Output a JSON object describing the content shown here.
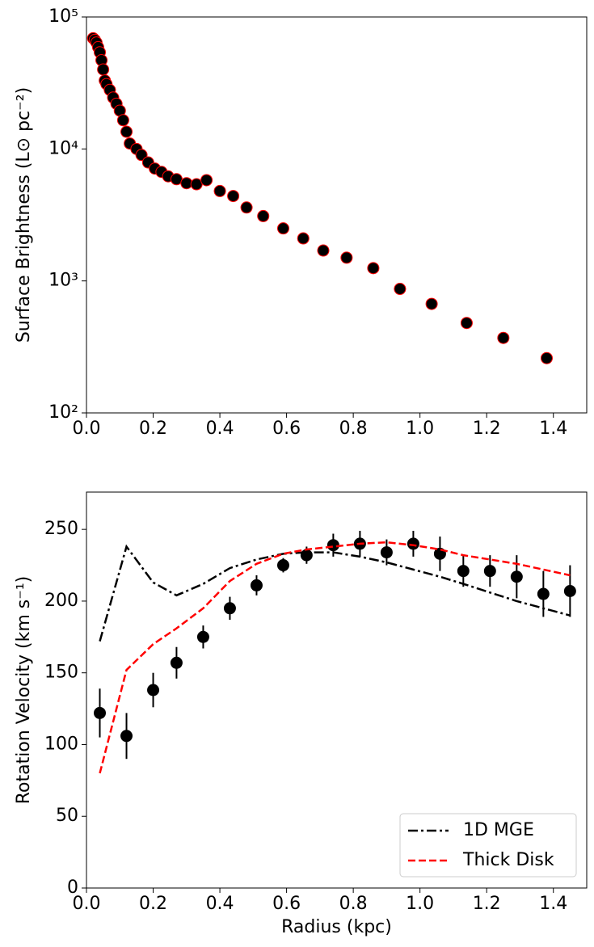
{
  "chart_data": [
    {
      "type": "scatter",
      "ylabel": "Surface Brightness (L⊙ pc⁻²)",
      "x": [
        0.02,
        0.025,
        0.03,
        0.035,
        0.04,
        0.045,
        0.05,
        0.055,
        0.06,
        0.07,
        0.08,
        0.09,
        0.1,
        0.11,
        0.12,
        0.13,
        0.15,
        0.165,
        0.185,
        0.205,
        0.225,
        0.245,
        0.27,
        0.3,
        0.33,
        0.36,
        0.4,
        0.44,
        0.48,
        0.53,
        0.59,
        0.65,
        0.71,
        0.78,
        0.86,
        0.94,
        1.035,
        1.14,
        1.25,
        1.38
      ],
      "series": [
        {
          "color": "#000000",
          "edgecolor": "#ff0000",
          "values": [
            69000,
            67000,
            64000,
            59000,
            54000,
            47000,
            40000,
            33000,
            31000,
            28000,
            24500,
            22000,
            19500,
            16500,
            13500,
            11000,
            10000,
            9000,
            7900,
            7100,
            6700,
            6200,
            5900,
            5500,
            5400,
            5800,
            4800,
            4400,
            3600,
            3100,
            2500,
            2100,
            1700,
            1500,
            1250,
            870,
            670,
            480,
            370,
            260
          ]
        }
      ],
      "xlim": [
        0,
        1.5
      ],
      "xticks": [
        {
          "value": 0,
          "label": "0.0"
        },
        0.2,
        0.4,
        0.6,
        0.8,
        {
          "value": 1,
          "label": "1.0"
        },
        1.2,
        1.4
      ],
      "yscale": "log",
      "ylim": [
        100,
        100000
      ],
      "yticks": [
        {
          "value": 100,
          "label": "10²"
        },
        {
          "value": 1000,
          "label": "10³"
        },
        {
          "value": 10000,
          "label": "10⁴"
        },
        {
          "value": 100000,
          "label": "10⁵"
        }
      ]
    },
    {
      "type": "line",
      "xlabel": "Radius (kpc)",
      "ylabel": "Rotation Velocity (km s⁻¹)",
      "x": [
        0.04,
        0.12,
        0.2,
        0.27,
        0.35,
        0.43,
        0.51,
        0.59,
        0.66,
        0.74,
        0.82,
        0.9,
        0.98,
        1.06,
        1.13,
        1.21,
        1.29,
        1.37,
        1.45
      ],
      "series": [
        {
          "style": "markers",
          "color": "#000000",
          "values": [
            122,
            106,
            138,
            157,
            175,
            195,
            211,
            225,
            232,
            239,
            240,
            234,
            240,
            233,
            221,
            221,
            217,
            205,
            207
          ],
          "errors": [
            17,
            16,
            12,
            11,
            8,
            8,
            7,
            5,
            6,
            8,
            9,
            9,
            9,
            12,
            11,
            11,
            15,
            16,
            18
          ]
        },
        {
          "name": "1D MGE",
          "style": "dashdot",
          "color": "#000000",
          "values": [
            172,
            238,
            213,
            204,
            212,
            223,
            229,
            233,
            234,
            234,
            231,
            227,
            222,
            217,
            212,
            206,
            200,
            195,
            190
          ]
        },
        {
          "name": "Thick Disk",
          "style": "dashed",
          "color": "#ff0000",
          "values": [
            80,
            152,
            170,
            181,
            195,
            214,
            226,
            233,
            236,
            238,
            240,
            241,
            239,
            236,
            232,
            229,
            226,
            222,
            218
          ]
        }
      ],
      "xlim": [
        0,
        1.5
      ],
      "xticks": [
        {
          "value": 0,
          "label": "0.0"
        },
        0.2,
        0.4,
        0.6,
        0.8,
        {
          "value": 1,
          "label": "1.0"
        },
        1.2,
        1.4
      ],
      "ylim": [
        0,
        276
      ],
      "yticks": [
        0,
        50,
        100,
        150,
        200,
        250
      ],
      "legend": "lower right"
    }
  ]
}
